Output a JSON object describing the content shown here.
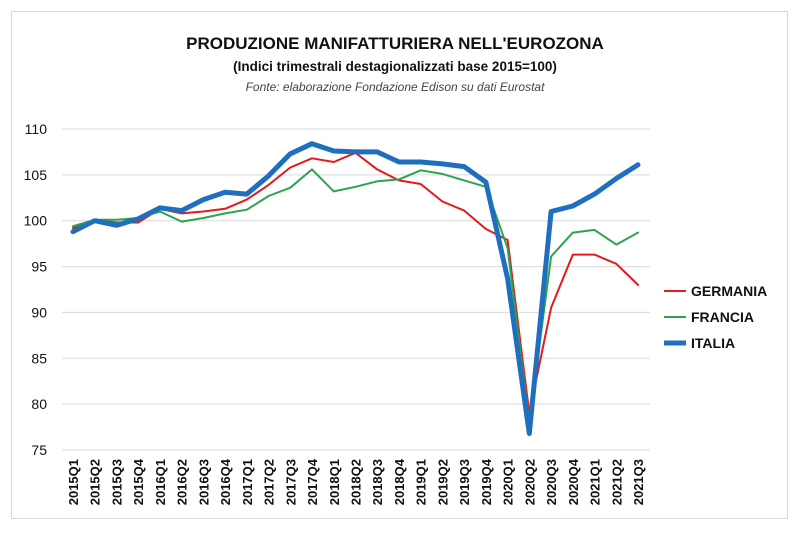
{
  "chart_data": {
    "type": "line",
    "title": "PRODUZIONE MANIFATTURIERA NELL'EUROZONA",
    "subtitle": "(Indici trimestrali destagionalizzati base 2015=100)",
    "source": "Fonte: elaborazione Fondazione Edison su dati Eurostat",
    "xlabel": "",
    "ylabel": "",
    "ylim": [
      75,
      110
    ],
    "yticks": [
      "75",
      "80",
      "85",
      "90",
      "95",
      "100",
      "105",
      "110"
    ],
    "grid": true,
    "legend_position": "right",
    "categories": [
      "2015Q1",
      "2015Q2",
      "2015Q3",
      "2015Q4",
      "2016Q1",
      "2016Q2",
      "2016Q3",
      "2016Q4",
      "2017Q1",
      "2017Q2",
      "2017Q3",
      "2017Q4",
      "2018Q1",
      "2018Q2",
      "2018Q3",
      "2018Q4",
      "2019Q1",
      "2019Q2",
      "2019Q3",
      "2019Q4",
      "2020Q1",
      "2020Q2",
      "2020Q3",
      "2020Q4",
      "2021Q1",
      "2021Q2",
      "2021Q3"
    ],
    "series": [
      {
        "name": "GERMANIA",
        "color": "#e31a1c",
        "width": 2,
        "values": [
          99.2,
          100.1,
          99.8,
          99.8,
          101.3,
          100.8,
          101.0,
          101.3,
          102.3,
          103.9,
          105.8,
          106.8,
          106.4,
          107.4,
          105.6,
          104.4,
          104.0,
          102.1,
          101.1,
          99.1,
          97.9,
          79.0,
          90.5,
          96.3,
          96.3,
          95.3,
          93.0
        ]
      },
      {
        "name": "FRANCIA",
        "color": "#2ca44e",
        "width": 2,
        "values": [
          99.4,
          100.1,
          100.1,
          100.3,
          101.0,
          99.9,
          100.3,
          100.8,
          101.2,
          102.7,
          103.6,
          105.6,
          103.2,
          103.7,
          104.3,
          104.5,
          105.5,
          105.1,
          104.4,
          103.7,
          97.0,
          78.0,
          96.1,
          98.7,
          99.0,
          97.4,
          98.7
        ]
      },
      {
        "name": "ITALIA",
        "color": "#1f6fbe",
        "width": 5,
        "values": [
          98.8,
          100.0,
          99.5,
          100.2,
          101.4,
          101.1,
          102.3,
          103.1,
          102.9,
          104.9,
          107.3,
          108.4,
          107.6,
          107.5,
          107.5,
          106.4,
          106.4,
          106.2,
          105.9,
          104.2,
          93.7,
          76.8,
          101.0,
          101.6,
          102.9,
          104.6,
          106.1
        ]
      }
    ]
  }
}
